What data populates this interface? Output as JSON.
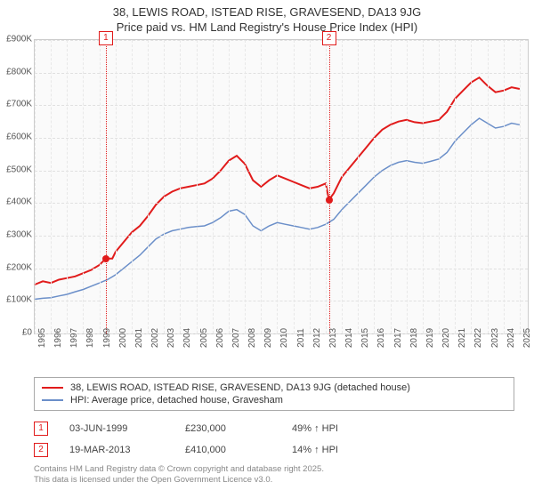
{
  "title_line1": "38, LEWIS ROAD, ISTEAD RISE, GRAVESEND, DA13 9JG",
  "title_line2": "Price paid vs. HM Land Registry's House Price Index (HPI)",
  "chart": {
    "type": "line",
    "background_color": "#fafafa",
    "grid_color": "#e0e0e0",
    "x_years": [
      1995,
      1996,
      1997,
      1998,
      1999,
      2000,
      2001,
      2002,
      2003,
      2004,
      2005,
      2006,
      2007,
      2008,
      2009,
      2010,
      2011,
      2012,
      2013,
      2014,
      2015,
      2016,
      2017,
      2018,
      2019,
      2020,
      2021,
      2022,
      2023,
      2024,
      2025
    ],
    "xlim": [
      1995,
      2025.5
    ],
    "ylim": [
      0,
      900
    ],
    "ytick_step": 100,
    "ytick_labels": [
      "£0",
      "£100K",
      "£200K",
      "£300K",
      "£400K",
      "£500K",
      "£600K",
      "£700K",
      "£800K",
      "£900K"
    ],
    "series": [
      {
        "name": "38, LEWIS ROAD, ISTEAD RISE, GRAVESEND, DA13 9JG (detached house)",
        "color": "#e11b1b",
        "width": 2,
        "data": [
          [
            1995,
            150
          ],
          [
            1995.5,
            160
          ],
          [
            1996,
            155
          ],
          [
            1996.5,
            165
          ],
          [
            1997,
            170
          ],
          [
            1997.5,
            175
          ],
          [
            1998,
            185
          ],
          [
            1998.5,
            195
          ],
          [
            1999,
            210
          ],
          [
            1999.4,
            230
          ],
          [
            1999.8,
            230
          ],
          [
            2000,
            250
          ],
          [
            2000.5,
            280
          ],
          [
            2001,
            310
          ],
          [
            2001.5,
            330
          ],
          [
            2002,
            360
          ],
          [
            2002.5,
            395
          ],
          [
            2003,
            420
          ],
          [
            2003.5,
            435
          ],
          [
            2004,
            445
          ],
          [
            2004.5,
            450
          ],
          [
            2005,
            455
          ],
          [
            2005.5,
            460
          ],
          [
            2006,
            475
          ],
          [
            2006.5,
            500
          ],
          [
            2007,
            530
          ],
          [
            2007.5,
            545
          ],
          [
            2008,
            520
          ],
          [
            2008.5,
            470
          ],
          [
            2009,
            450
          ],
          [
            2009.5,
            470
          ],
          [
            2010,
            485
          ],
          [
            2010.5,
            475
          ],
          [
            2011,
            465
          ],
          [
            2011.5,
            455
          ],
          [
            2012,
            445
          ],
          [
            2012.5,
            450
          ],
          [
            2013,
            460
          ],
          [
            2013.2,
            410
          ],
          [
            2013.5,
            430
          ],
          [
            2014,
            480
          ],
          [
            2014.5,
            510
          ],
          [
            2015,
            540
          ],
          [
            2015.5,
            570
          ],
          [
            2016,
            600
          ],
          [
            2016.5,
            625
          ],
          [
            2017,
            640
          ],
          [
            2017.5,
            650
          ],
          [
            2018,
            655
          ],
          [
            2018.5,
            648
          ],
          [
            2019,
            645
          ],
          [
            2019.5,
            650
          ],
          [
            2020,
            655
          ],
          [
            2020.5,
            680
          ],
          [
            2021,
            720
          ],
          [
            2021.5,
            745
          ],
          [
            2022,
            770
          ],
          [
            2022.5,
            785
          ],
          [
            2023,
            760
          ],
          [
            2023.5,
            740
          ],
          [
            2024,
            745
          ],
          [
            2024.5,
            755
          ],
          [
            2025,
            750
          ]
        ]
      },
      {
        "name": "HPI: Average price, detached house, Gravesham",
        "color": "#6b8fc9",
        "width": 1.5,
        "data": [
          [
            1995,
            105
          ],
          [
            1995.5,
            108
          ],
          [
            1996,
            110
          ],
          [
            1996.5,
            115
          ],
          [
            1997,
            120
          ],
          [
            1997.5,
            128
          ],
          [
            1998,
            135
          ],
          [
            1998.5,
            145
          ],
          [
            1999,
            155
          ],
          [
            1999.5,
            165
          ],
          [
            2000,
            180
          ],
          [
            2000.5,
            200
          ],
          [
            2001,
            220
          ],
          [
            2001.5,
            240
          ],
          [
            2002,
            265
          ],
          [
            2002.5,
            290
          ],
          [
            2003,
            305
          ],
          [
            2003.5,
            315
          ],
          [
            2004,
            320
          ],
          [
            2004.5,
            325
          ],
          [
            2005,
            328
          ],
          [
            2005.5,
            330
          ],
          [
            2006,
            340
          ],
          [
            2006.5,
            355
          ],
          [
            2007,
            375
          ],
          [
            2007.5,
            380
          ],
          [
            2008,
            365
          ],
          [
            2008.5,
            330
          ],
          [
            2009,
            315
          ],
          [
            2009.5,
            330
          ],
          [
            2010,
            340
          ],
          [
            2010.5,
            335
          ],
          [
            2011,
            330
          ],
          [
            2011.5,
            325
          ],
          [
            2012,
            320
          ],
          [
            2012.5,
            325
          ],
          [
            2013,
            335
          ],
          [
            2013.5,
            350
          ],
          [
            2014,
            380
          ],
          [
            2014.5,
            405
          ],
          [
            2015,
            430
          ],
          [
            2015.5,
            455
          ],
          [
            2016,
            480
          ],
          [
            2016.5,
            500
          ],
          [
            2017,
            515
          ],
          [
            2017.5,
            525
          ],
          [
            2018,
            530
          ],
          [
            2018.5,
            525
          ],
          [
            2019,
            522
          ],
          [
            2019.5,
            528
          ],
          [
            2020,
            535
          ],
          [
            2020.5,
            555
          ],
          [
            2021,
            590
          ],
          [
            2021.5,
            615
          ],
          [
            2022,
            640
          ],
          [
            2022.5,
            660
          ],
          [
            2023,
            645
          ],
          [
            2023.5,
            630
          ],
          [
            2024,
            635
          ],
          [
            2024.5,
            645
          ],
          [
            2025,
            640
          ]
        ]
      }
    ],
    "markers": [
      {
        "n": "1",
        "color": "#e11b1b",
        "x": 1999.4,
        "sale_y": 230
      },
      {
        "n": "2",
        "color": "#e11b1b",
        "x": 2013.2,
        "sale_y": 410
      }
    ]
  },
  "legend": [
    {
      "color": "#e11b1b",
      "label": "38, LEWIS ROAD, ISTEAD RISE, GRAVESEND, DA13 9JG (detached house)"
    },
    {
      "color": "#6b8fc9",
      "label": "HPI: Average price, detached house, Gravesham"
    }
  ],
  "events": [
    {
      "n": "1",
      "color": "#e11b1b",
      "date": "03-JUN-1999",
      "price": "£230,000",
      "diff": "49% ↑ HPI"
    },
    {
      "n": "2",
      "color": "#e11b1b",
      "date": "19-MAR-2013",
      "price": "£410,000",
      "diff": "14% ↑ HPI"
    }
  ],
  "credits_line1": "Contains HM Land Registry data © Crown copyright and database right 2025.",
  "credits_line2": "This data is licensed under the Open Government Licence v3.0."
}
